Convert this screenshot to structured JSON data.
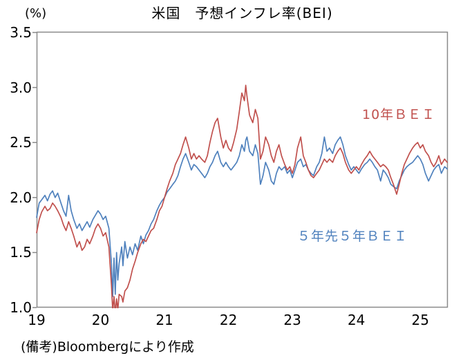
{
  "title": "米国　予想インフレ率(BEI)",
  "unit_label": "(%)",
  "note": "(備考)Bloombergにより作成",
  "legend": {
    "bei10y": "10年ＢＥＩ",
    "bei5y5y": "５年先５年ＢＥＩ"
  },
  "colors": {
    "bei10y": "#C0504D",
    "bei5y5y": "#4F81BD",
    "axis": "#898989",
    "text": "#000000",
    "background": "#FFFFFF"
  },
  "chart_data": {
    "type": "line",
    "title": "米国　予想インフレ率(BEI)",
    "xlabel": "",
    "ylabel": "(%)",
    "ylim": [
      1.0,
      3.5
    ],
    "yticks": [
      3.5,
      3.0,
      2.5,
      2.0,
      1.5,
      1.0
    ],
    "ytick_labels": [
      "3.5",
      "3.0",
      "2.5",
      "2.0",
      "1.5",
      "1.0"
    ],
    "xlim": [
      2019.0,
      2025.43
    ],
    "xticks": [
      2019,
      2020,
      2021,
      2022,
      2023,
      2024,
      2025
    ],
    "xtick_labels": [
      "19",
      "20",
      "21",
      "22",
      "23",
      "24",
      "25"
    ],
    "grid": false,
    "legend_position": "inline-labels",
    "source_note": "(備考)Bloombergにより作成",
    "x": [
      2019.0,
      2019.04,
      2019.08,
      2019.13,
      2019.17,
      2019.21,
      2019.25,
      2019.29,
      2019.33,
      2019.38,
      2019.42,
      2019.46,
      2019.5,
      2019.54,
      2019.58,
      2019.63,
      2019.67,
      2019.71,
      2019.75,
      2019.79,
      2019.83,
      2019.88,
      2019.92,
      2019.96,
      2020.0,
      2020.04,
      2020.08,
      2020.13,
      2020.17,
      2020.19,
      2020.21,
      2020.23,
      2020.25,
      2020.27,
      2020.29,
      2020.33,
      2020.35,
      2020.38,
      2020.42,
      2020.46,
      2020.5,
      2020.54,
      2020.58,
      2020.63,
      2020.67,
      2020.71,
      2020.75,
      2020.79,
      2020.83,
      2020.88,
      2020.92,
      2020.96,
      2021.0,
      2021.04,
      2021.08,
      2021.13,
      2021.17,
      2021.21,
      2021.25,
      2021.29,
      2021.33,
      2021.38,
      2021.42,
      2021.46,
      2021.5,
      2021.54,
      2021.58,
      2021.63,
      2021.67,
      2021.71,
      2021.75,
      2021.79,
      2021.83,
      2021.88,
      2021.92,
      2021.96,
      2022.0,
      2022.04,
      2022.08,
      2022.13,
      2022.17,
      2022.21,
      2022.25,
      2022.27,
      2022.29,
      2022.33,
      2022.38,
      2022.42,
      2022.46,
      2022.5,
      2022.54,
      2022.58,
      2022.63,
      2022.67,
      2022.71,
      2022.75,
      2022.79,
      2022.83,
      2022.88,
      2022.92,
      2022.96,
      2023.0,
      2023.04,
      2023.08,
      2023.13,
      2023.17,
      2023.21,
      2023.25,
      2023.29,
      2023.33,
      2023.38,
      2023.42,
      2023.46,
      2023.5,
      2023.54,
      2023.58,
      2023.63,
      2023.67,
      2023.71,
      2023.75,
      2023.79,
      2023.83,
      2023.88,
      2023.92,
      2023.96,
      2024.0,
      2024.04,
      2024.08,
      2024.13,
      2024.17,
      2024.21,
      2024.25,
      2024.29,
      2024.33,
      2024.38,
      2024.42,
      2024.46,
      2024.5,
      2024.54,
      2024.58,
      2024.63,
      2024.67,
      2024.71,
      2024.75,
      2024.79,
      2024.83,
      2024.88,
      2024.92,
      2024.96,
      2025.0,
      2025.04,
      2025.08,
      2025.13,
      2025.17,
      2025.21,
      2025.25,
      2025.29,
      2025.33,
      2025.38,
      2025.42
    ],
    "series": [
      {
        "name": "５年先５年ＢＥＩ",
        "color": "#4F81BD",
        "values": [
          1.82,
          1.95,
          1.98,
          2.02,
          1.97,
          2.03,
          2.06,
          2.0,
          2.04,
          1.95,
          1.88,
          1.83,
          2.02,
          1.88,
          1.8,
          1.72,
          1.76,
          1.7,
          1.74,
          1.78,
          1.73,
          1.8,
          1.84,
          1.88,
          1.85,
          1.8,
          1.83,
          1.72,
          1.4,
          1.1,
          1.45,
          1.12,
          1.5,
          1.25,
          1.4,
          1.55,
          1.38,
          1.6,
          1.45,
          1.55,
          1.48,
          1.58,
          1.52,
          1.65,
          1.58,
          1.66,
          1.7,
          1.76,
          1.8,
          1.88,
          1.93,
          1.97,
          2.0,
          2.05,
          2.08,
          2.12,
          2.15,
          2.2,
          2.28,
          2.35,
          2.4,
          2.32,
          2.25,
          2.3,
          2.28,
          2.25,
          2.22,
          2.18,
          2.22,
          2.28,
          2.32,
          2.38,
          2.42,
          2.32,
          2.28,
          2.32,
          2.28,
          2.25,
          2.28,
          2.32,
          2.38,
          2.48,
          2.42,
          2.52,
          2.55,
          2.42,
          2.38,
          2.48,
          2.4,
          2.12,
          2.2,
          2.32,
          2.25,
          2.15,
          2.12,
          2.22,
          2.28,
          2.25,
          2.28,
          2.22,
          2.25,
          2.18,
          2.25,
          2.32,
          2.35,
          2.28,
          2.3,
          2.25,
          2.22,
          2.2,
          2.28,
          2.32,
          2.4,
          2.55,
          2.42,
          2.45,
          2.4,
          2.48,
          2.52,
          2.55,
          2.48,
          2.38,
          2.3,
          2.25,
          2.28,
          2.25,
          2.22,
          2.26,
          2.3,
          2.32,
          2.35,
          2.32,
          2.28,
          2.25,
          2.15,
          2.25,
          2.22,
          2.18,
          2.12,
          2.1,
          2.08,
          2.15,
          2.2,
          2.25,
          2.28,
          2.3,
          2.32,
          2.35,
          2.38,
          2.35,
          2.3,
          2.22,
          2.15,
          2.2,
          2.25,
          2.28,
          2.3,
          2.22,
          2.28,
          2.26
        ]
      },
      {
        "name": "10年ＢＥＩ",
        "color": "#C0504D",
        "values": [
          1.68,
          1.8,
          1.87,
          1.92,
          1.88,
          1.9,
          1.95,
          1.92,
          1.88,
          1.82,
          1.75,
          1.7,
          1.78,
          1.72,
          1.65,
          1.55,
          1.6,
          1.52,
          1.55,
          1.62,
          1.58,
          1.65,
          1.72,
          1.76,
          1.72,
          1.65,
          1.68,
          1.55,
          1.2,
          0.97,
          1.1,
          0.95,
          1.08,
          0.98,
          1.12,
          1.1,
          1.05,
          1.15,
          1.18,
          1.25,
          1.35,
          1.42,
          1.5,
          1.58,
          1.62,
          1.6,
          1.65,
          1.7,
          1.72,
          1.8,
          1.88,
          1.92,
          2.0,
          2.08,
          2.15,
          2.22,
          2.3,
          2.35,
          2.4,
          2.48,
          2.55,
          2.45,
          2.35,
          2.4,
          2.35,
          2.38,
          2.35,
          2.32,
          2.38,
          2.5,
          2.6,
          2.68,
          2.72,
          2.55,
          2.45,
          2.52,
          2.45,
          2.42,
          2.5,
          2.62,
          2.78,
          2.95,
          2.88,
          3.02,
          2.92,
          2.75,
          2.68,
          2.8,
          2.72,
          2.35,
          2.42,
          2.55,
          2.48,
          2.38,
          2.32,
          2.42,
          2.48,
          2.38,
          2.3,
          2.25,
          2.28,
          2.22,
          2.3,
          2.45,
          2.55,
          2.38,
          2.32,
          2.25,
          2.2,
          2.18,
          2.22,
          2.25,
          2.3,
          2.35,
          2.32,
          2.35,
          2.32,
          2.38,
          2.42,
          2.45,
          2.4,
          2.32,
          2.25,
          2.22,
          2.25,
          2.28,
          2.25,
          2.3,
          2.35,
          2.38,
          2.42,
          2.38,
          2.35,
          2.32,
          2.28,
          2.3,
          2.28,
          2.25,
          2.18,
          2.12,
          2.03,
          2.12,
          2.22,
          2.3,
          2.35,
          2.4,
          2.45,
          2.48,
          2.5,
          2.45,
          2.48,
          2.42,
          2.38,
          2.32,
          2.28,
          2.32,
          2.38,
          2.3,
          2.35,
          2.32
        ]
      }
    ]
  }
}
